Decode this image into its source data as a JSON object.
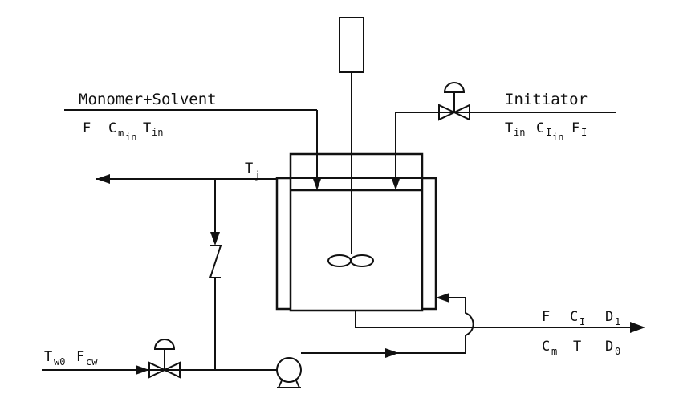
{
  "labels": {
    "monomer_solvent": "Monomer+Solvent",
    "initiator": "Initiator",
    "feed_F": "F",
    "feed_C": "C",
    "feed_C_sub": "m",
    "feed_C_subsub": "in",
    "feed_T": "T",
    "feed_T_sub": "in",
    "init_T": "T",
    "init_T_sub": "in",
    "init_C": "C",
    "init_C_sub": "I",
    "init_C_subsub": "in",
    "init_F": "F",
    "init_F_sub": "I",
    "jacket_T": "T",
    "jacket_T_sub": "j",
    "coolant_T": "T",
    "coolant_T_sub": "w0",
    "coolant_F": "F",
    "coolant_F_sub": "cw",
    "out_F": "F",
    "out_C": "C",
    "out_C_sub": "I",
    "out_D1": "D",
    "out_D1_sub": "1",
    "out_Cm": "C",
    "out_Cm_sub": "m",
    "out_T": "T",
    "out_D0": "D",
    "out_D0_sub": "0"
  }
}
